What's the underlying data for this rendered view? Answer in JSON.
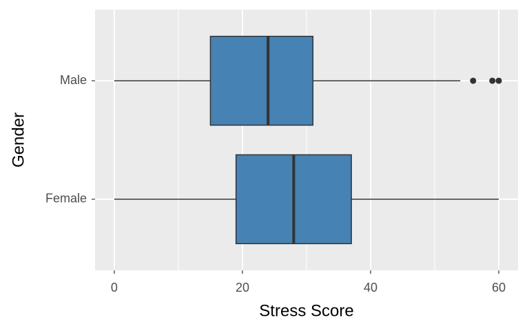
{
  "chart_data": {
    "type": "boxplot",
    "orientation": "horizontal",
    "x_label": "Stress Score",
    "y_label": "Gender",
    "color": "#4682b4",
    "boxes": [
      {
        "category": "Male",
        "whisker_low": 0,
        "q1": 15,
        "median": 24,
        "q3": 31,
        "whisker_high": 54,
        "outliers": [
          56,
          59,
          60
        ]
      },
      {
        "category": "Female",
        "whisker_low": 0,
        "q1": 19,
        "median": 28,
        "q3": 37,
        "whisker_high": 60,
        "outliers": []
      }
    ],
    "xlim": [
      -3,
      63
    ],
    "xticks": [
      0,
      20,
      40,
      60
    ],
    "xminor": [
      10,
      30,
      50
    ],
    "grid": true
  }
}
